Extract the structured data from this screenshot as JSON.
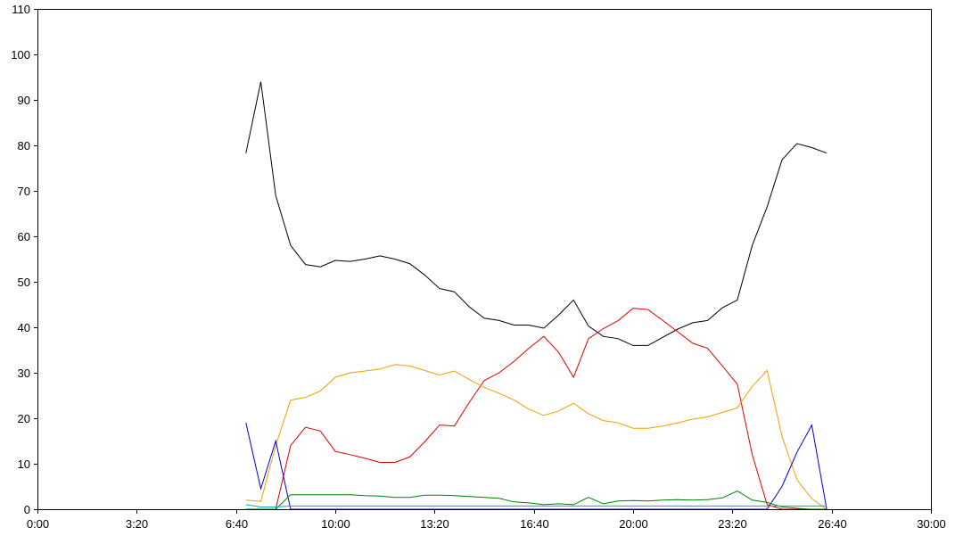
{
  "chart_data": {
    "type": "line",
    "title": "",
    "xlabel": "",
    "ylabel": "",
    "xlim": [
      0,
      1800
    ],
    "ylim": [
      0,
      110
    ],
    "grid": false,
    "x_tick_values": [
      0,
      200,
      400,
      600,
      800,
      1000,
      1200,
      1400,
      1600,
      1800
    ],
    "x_tick_labels": [
      "0:00",
      "3:20",
      "6:40",
      "10:00",
      "13:20",
      "16:40",
      "20:00",
      "23:20",
      "26:40",
      "30:00"
    ],
    "y_tick_values": [
      0,
      10,
      20,
      30,
      40,
      50,
      60,
      70,
      80,
      90,
      100,
      110
    ],
    "y_tick_labels": [
      "0",
      "10",
      "20",
      "30",
      "40",
      "50",
      "60",
      "70",
      "80",
      "90",
      "100",
      "110"
    ],
    "x": [
      420,
      450,
      480,
      510,
      540,
      570,
      600,
      630,
      660,
      690,
      720,
      750,
      780,
      810,
      840,
      870,
      900,
      930,
      960,
      990,
      1020,
      1050,
      1080,
      1110,
      1140,
      1170,
      1200,
      1230,
      1260,
      1290,
      1320,
      1350,
      1380,
      1410,
      1440,
      1470,
      1500,
      1530,
      1560,
      1590
    ],
    "series": [
      {
        "color": "#000000",
        "values": [
          78.3,
          94.0,
          69.0,
          58.0,
          53.8,
          53.3,
          54.7,
          54.5,
          55.0,
          55.7,
          55.0,
          54.0,
          51.5,
          48.5,
          47.8,
          44.5,
          42.0,
          41.5,
          40.5,
          40.5,
          39.8,
          42.7,
          46.0,
          40.3,
          38.0,
          37.5,
          36.0,
          36.0,
          37.8,
          39.6,
          41.0,
          41.5,
          44.3,
          46.0,
          58.0,
          66.5,
          76.8,
          80.4,
          79.5,
          78.3
        ]
      },
      {
        "color": "#dd0000",
        "values": [
          0.0,
          0.0,
          0.0,
          14.0,
          18.0,
          17.2,
          12.7,
          12.0,
          11.2,
          10.3,
          10.3,
          11.5,
          14.8,
          18.5,
          18.3,
          23.5,
          28.3,
          30.0,
          32.5,
          35.4,
          38.0,
          34.5,
          29.0,
          37.5,
          39.7,
          41.5,
          44.2,
          43.9,
          41.5,
          39.0,
          36.5,
          35.4,
          31.5,
          27.5,
          12.0,
          1.0,
          0.0,
          0.0,
          0.0,
          0.0
        ]
      },
      {
        "color": "#f0a000",
        "values": [
          2.0,
          1.7,
          14.0,
          24.0,
          24.6,
          26.0,
          29.0,
          30.0,
          30.4,
          30.8,
          31.8,
          31.5,
          30.5,
          29.5,
          30.4,
          28.5,
          26.8,
          25.5,
          24.0,
          22.0,
          20.6,
          21.6,
          23.3,
          21.0,
          19.5,
          19.0,
          17.8,
          17.8,
          18.3,
          19.0,
          19.8,
          20.3,
          21.3,
          22.3,
          27.0,
          30.5,
          16.0,
          6.5,
          2.3,
          0.0
        ]
      },
      {
        "color": "#0000cc",
        "values": [
          19.0,
          4.5,
          15.0,
          0.0,
          0.0,
          0.0,
          0.0,
          0.0,
          0.0,
          0.0,
          0.0,
          0.0,
          0.0,
          0.0,
          0.0,
          0.0,
          0.0,
          0.0,
          0.0,
          0.0,
          0.0,
          0.0,
          0.0,
          0.0,
          0.0,
          0.0,
          0.0,
          0.0,
          0.0,
          0.0,
          0.0,
          0.0,
          0.0,
          0.0,
          0.0,
          0.0,
          5.0,
          12.5,
          18.5,
          0.0
        ]
      },
      {
        "color": "#008000",
        "values": [
          0.0,
          0.0,
          0.0,
          3.2,
          3.2,
          3.2,
          3.2,
          3.2,
          3.0,
          2.9,
          2.6,
          2.6,
          3.1,
          3.1,
          3.0,
          2.8,
          2.6,
          2.4,
          1.6,
          1.4,
          1.0,
          1.2,
          1.0,
          2.6,
          1.2,
          1.8,
          1.9,
          1.8,
          2.0,
          2.1,
          2.0,
          2.1,
          2.5,
          4.0,
          2.0,
          1.5,
          0.5,
          0.2,
          0.0,
          0.0
        ]
      },
      {
        "color": "#00b0b0",
        "values": [
          1.0,
          0.5,
          0.5,
          0.7,
          0.7,
          0.7,
          0.7,
          0.7,
          0.7,
          0.7,
          0.7,
          0.7,
          0.7,
          0.7,
          0.7,
          0.7,
          0.7,
          0.7,
          0.7,
          0.7,
          0.7,
          0.7,
          0.7,
          0.7,
          0.7,
          0.7,
          0.7,
          0.7,
          0.7,
          0.7,
          0.7,
          0.7,
          0.7,
          0.7,
          0.7,
          0.7,
          0.7,
          0.7,
          0.7,
          0.7
        ]
      }
    ]
  }
}
